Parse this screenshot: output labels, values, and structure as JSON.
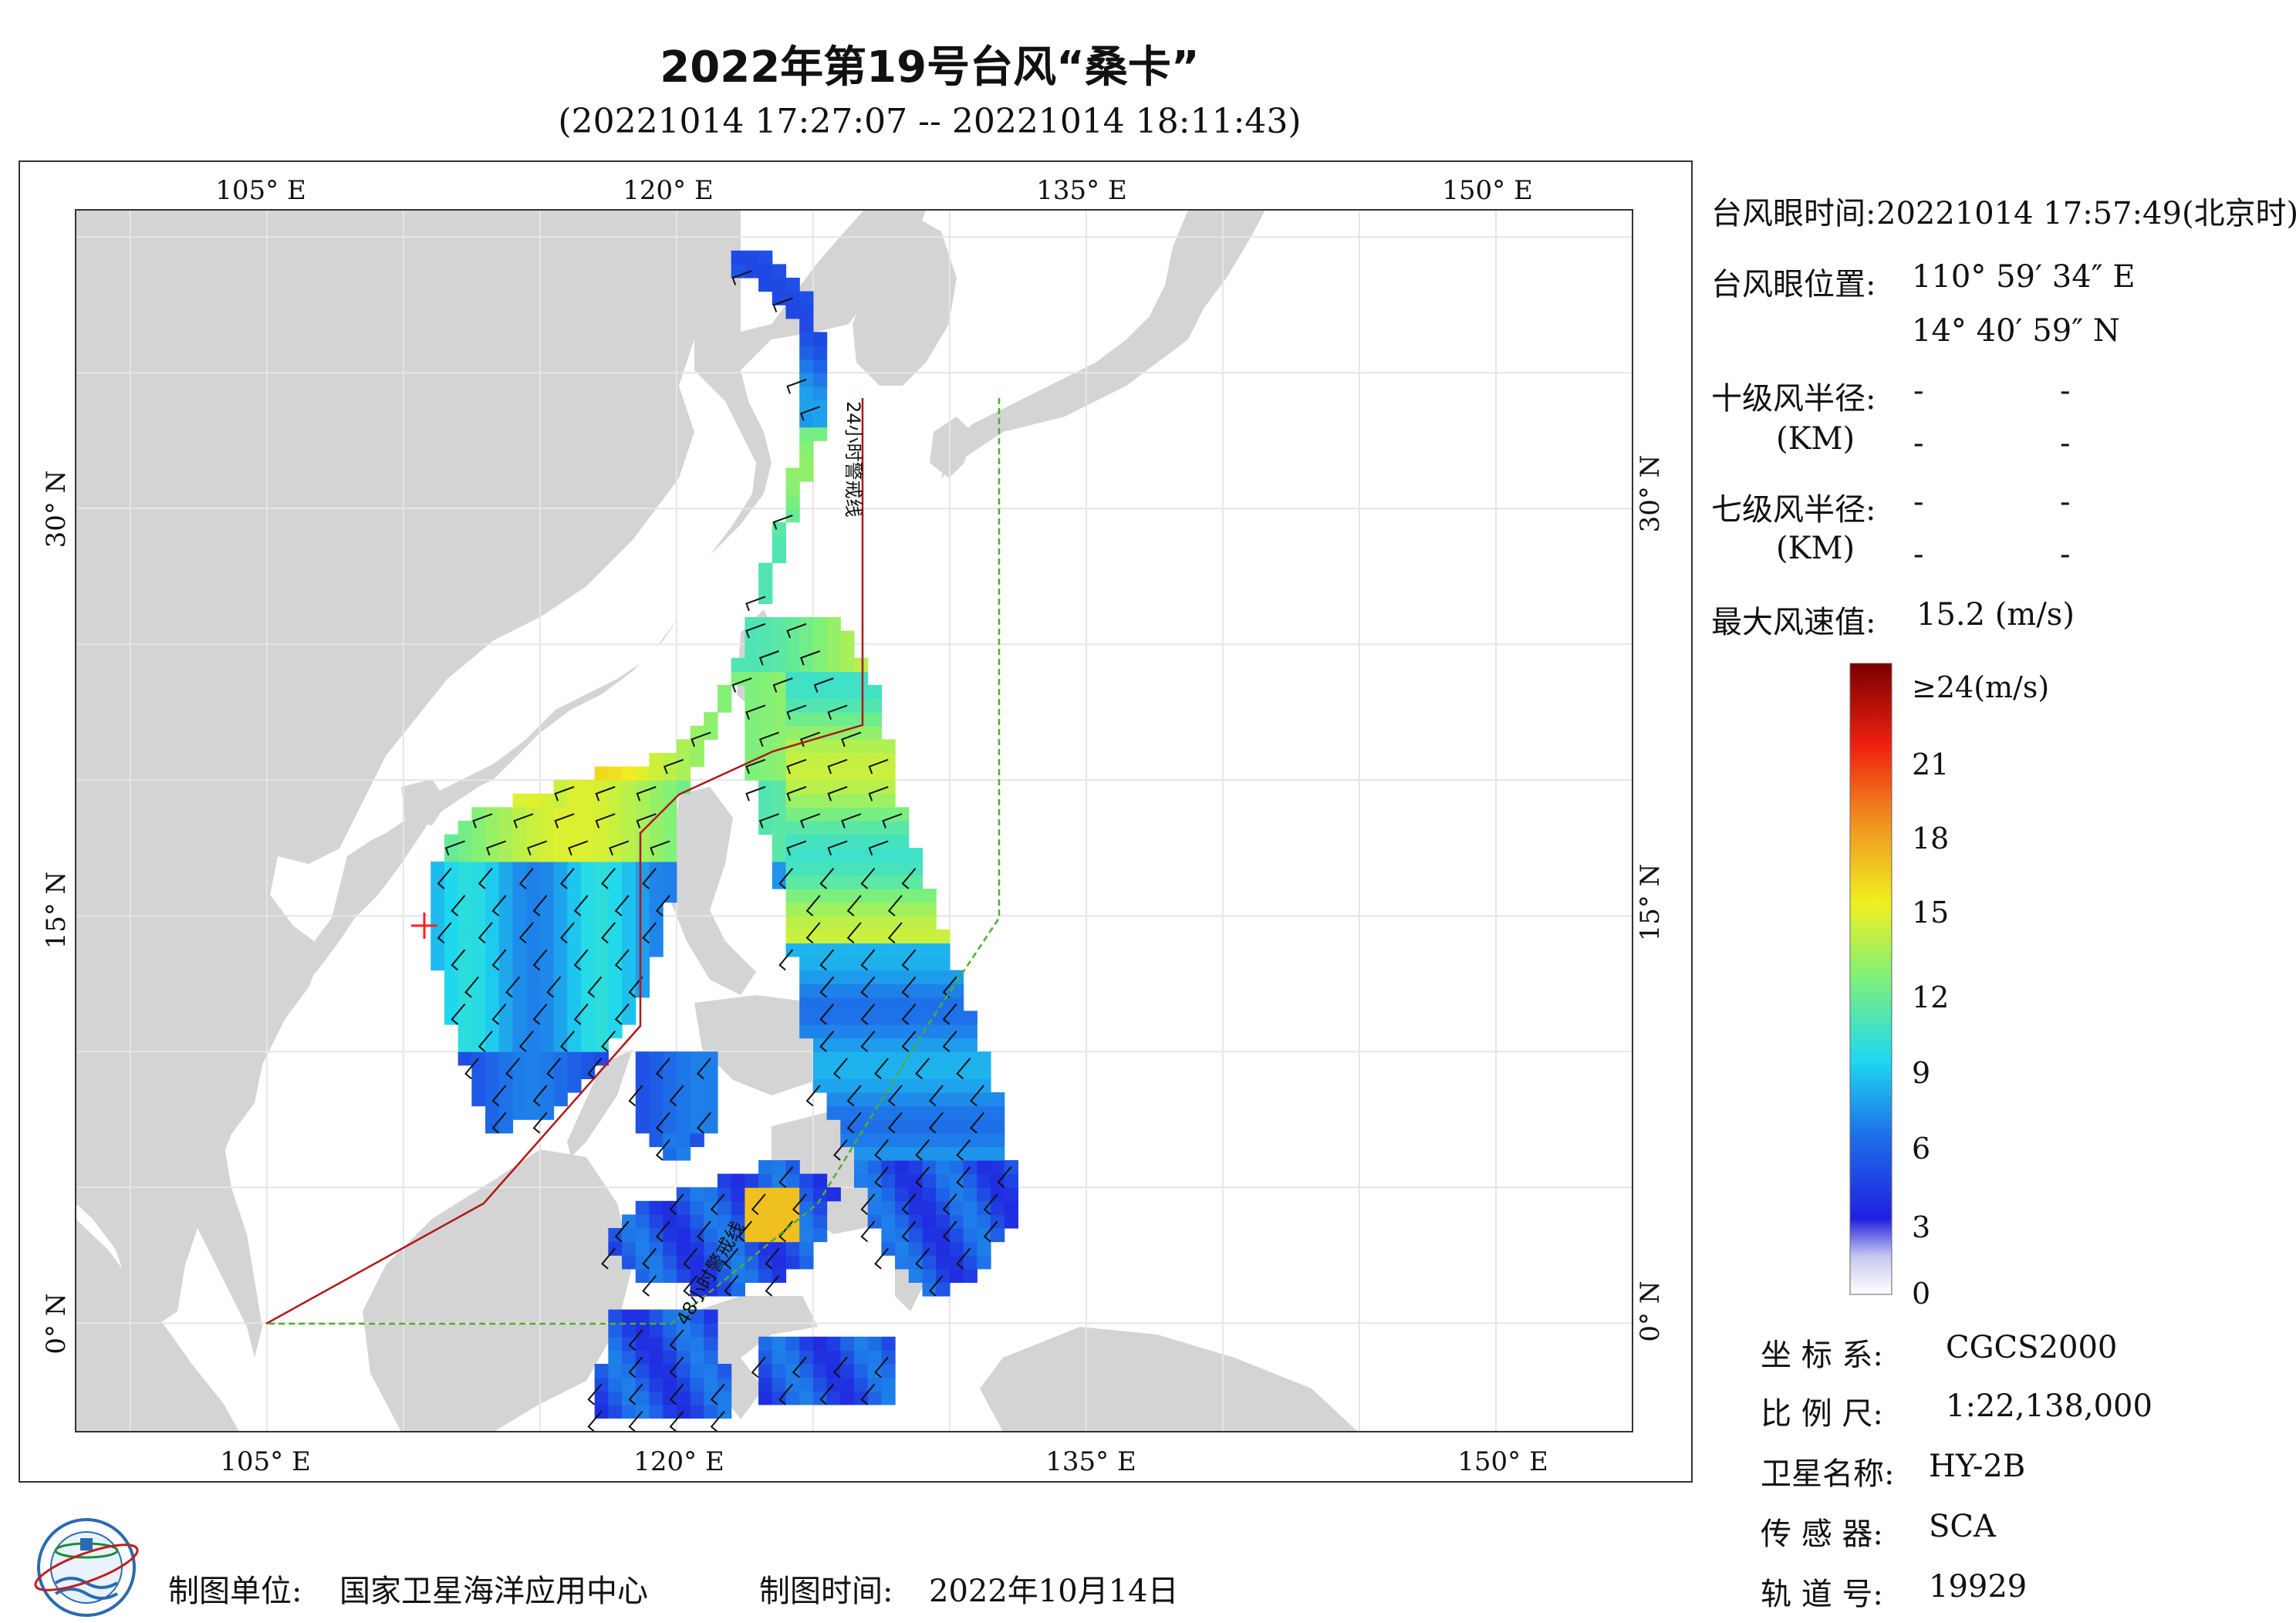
{
  "title": "2022年第19号台风“桑卡”",
  "subtitle": "(20221014 17:27:07 -- 20221014 18:11:43)",
  "map": {
    "lon_labels": [
      "105° E",
      "120° E",
      "135° E",
      "150° E"
    ],
    "lat_labels": [
      "30° N",
      "15° N",
      "0° N"
    ],
    "lon_range": [
      98,
      155
    ],
    "lat_range": [
      -4,
      41
    ],
    "line_24h_label": "24小时警戒线",
    "line_48h_label": "48小时警戒线",
    "typhoon_eye_marker": {
      "lon": 110.99,
      "lat": 14.68
    },
    "colors": {
      "land": "#d4d4d4",
      "sea": "#ffffff",
      "line_24h": "#b01818",
      "line_48h": "#4caf2e",
      "grid": "#e8e8e8",
      "eye": "#ff2020"
    }
  },
  "info": {
    "eye_time_label": "台风眼时间:",
    "eye_time_value": "20221014 17:57:49(北京时)",
    "eye_pos_label": "台风眼位置:",
    "eye_lon": "110° 59′ 34″ E",
    "eye_lat": "14° 40′ 59″ N",
    "r10_label": "十级风半径:",
    "r7_label": "七级风半径:",
    "km_label": "(KM)",
    "dash": "-",
    "max_wind_label": "最大风速值:",
    "max_wind_value": "15.2 (m/s)"
  },
  "colorbar": {
    "top_label": "≥24(m/s)",
    "ticks": [
      "21",
      "18",
      "15",
      "12",
      "9",
      "6",
      "3",
      "0"
    ]
  },
  "meta": {
    "crs_label": "坐 标 系:",
    "crs_value": "CGCS2000",
    "scale_label": "比 例 尺:",
    "scale_value": "1:22,138,000",
    "sat_label": "卫星名称:",
    "sat_value": "HY-2B",
    "sensor_label": "传 感 器:",
    "sensor_value": "SCA",
    "orbit_label": "轨 道 号:",
    "orbit_value": "19929"
  },
  "footer": {
    "unit_label": "制图单位:",
    "unit_value": "国家卫星海洋应用中心",
    "time_label": "制图时间:",
    "time_value": "2022年10月14日"
  }
}
